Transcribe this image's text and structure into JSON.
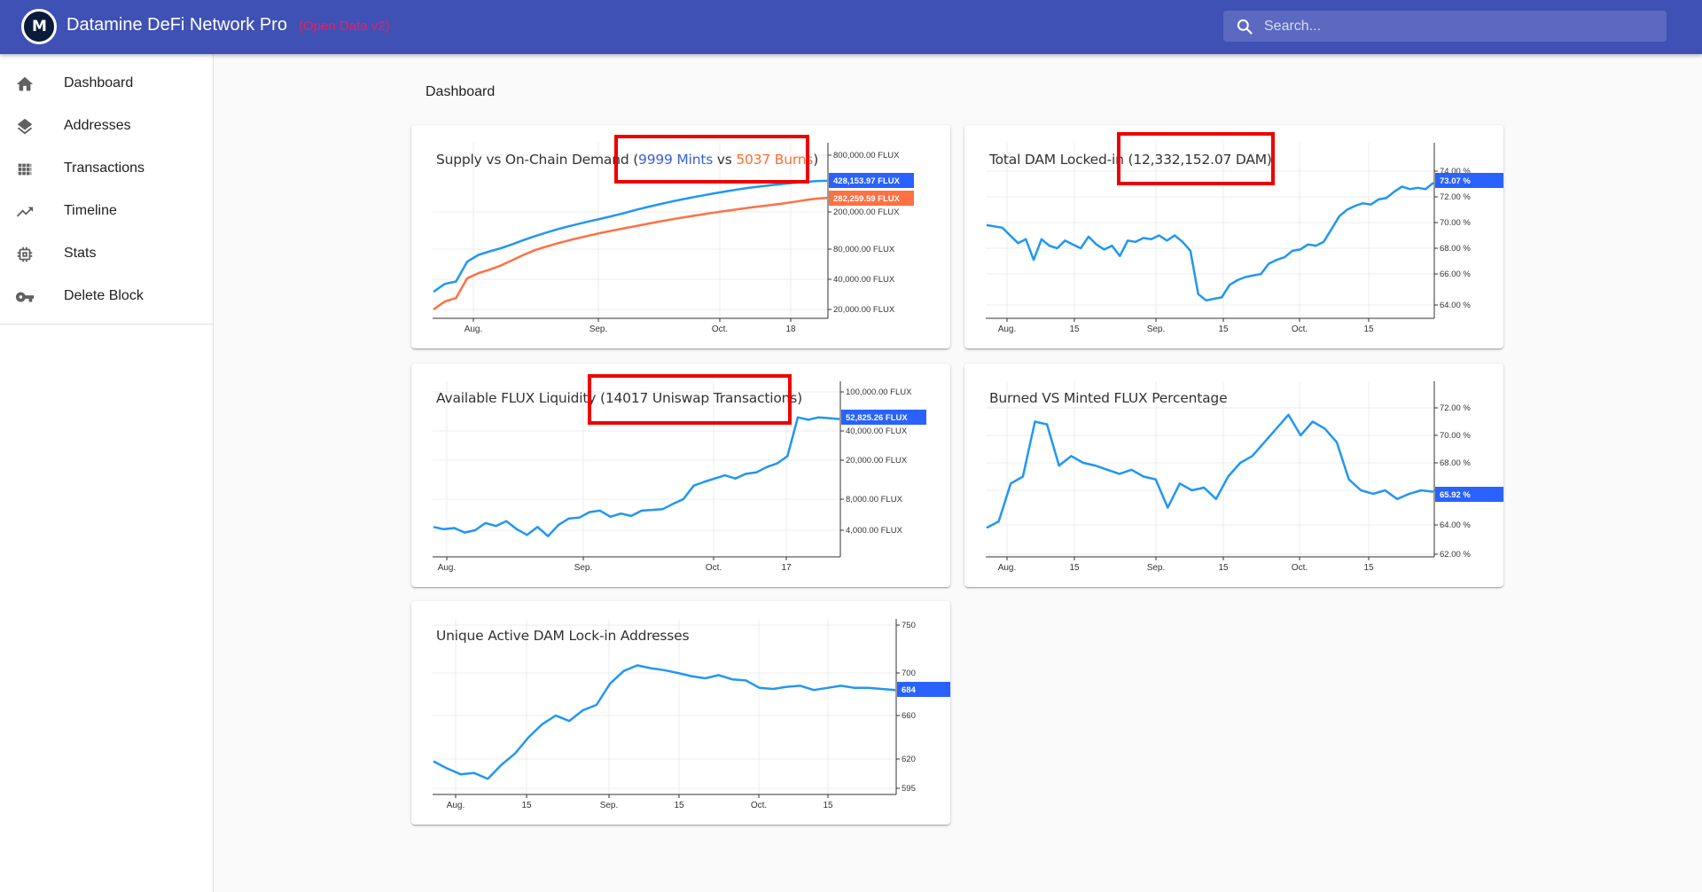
{
  "app": {
    "title": "Datamine DeFi Network Pro",
    "subtitle": "(Open Data v2)",
    "logo_text": "M",
    "search_placeholder": "Search..."
  },
  "sidebar": {
    "items": [
      {
        "label": "Dashboard",
        "icon": "home-icon"
      },
      {
        "label": "Addresses",
        "icon": "layers-icon"
      },
      {
        "label": "Transactions",
        "icon": "grid-icon"
      },
      {
        "label": "Timeline",
        "icon": "trending-up-icon"
      },
      {
        "label": "Stats",
        "icon": "chip-icon"
      },
      {
        "label": "Delete Block",
        "icon": "key-icon"
      }
    ]
  },
  "breadcrumb": "Dashboard",
  "colors": {
    "appbar": "#3f51b5",
    "subtitle": "#e91e63",
    "blue_series": "#2196f3",
    "orange_series": "#ff7043",
    "price_tag": "#2962ff",
    "highlight": "#ef0000"
  },
  "cards": {
    "supply": {
      "title_prefix": "Supply vs On-Chain Demand (",
      "mints": "9999 Mints",
      "vs": " vs ",
      "burns": "5037 Burns",
      "title_suffix": ")"
    },
    "locked": {
      "title": "Total DAM Locked-in (12,332,152.07 DAM)"
    },
    "liquidity": {
      "title_prefix": "Available FLUX Liquidity ",
      "title_hl": "(14017 Uniswap Transactions)"
    },
    "burned": {
      "title": "Burned VS Minted FLUX Percentage"
    },
    "unique": {
      "title": "Unique Active DAM Lock-in Addresses"
    }
  },
  "chart_data": [
    {
      "type": "line",
      "x_ticks": [
        "Aug.",
        "Sep.",
        "Oct.",
        "18"
      ],
      "y_ticks": [
        "800,000.00 FLUX",
        "200,000.00 FLUX",
        "80,000.00 FLUX",
        "40,000.00 FLUX",
        "20,000.00 FLUX"
      ],
      "y_scale": "log",
      "series": [
        {
          "current": "428,153.97 FLUX",
          "color": "#2196f3",
          "values": [
            30000,
            36000,
            38000,
            60000,
            70000,
            76000,
            82000,
            90000,
            100000,
            110000,
            120000,
            130000,
            140000,
            150000,
            160000,
            170000,
            182000,
            195000,
            210000,
            225000,
            240000,
            255000,
            270000,
            285000,
            300000,
            315000,
            330000,
            345000,
            360000,
            372000,
            384000,
            396000,
            406000,
            416000,
            424000,
            428154
          ]
        },
        {
          "current": "282,259.59 FLUX",
          "color": "#ff7043",
          "values": [
            20000,
            24000,
            26000,
            41000,
            46000,
            50000,
            55000,
            62000,
            70000,
            78000,
            85000,
            92000,
            99000,
            106000,
            113000,
            120000,
            127000,
            134000,
            141000,
            149000,
            157000,
            165000,
            173000,
            181000,
            189000,
            197000,
            205000,
            213000,
            221000,
            229000,
            237000,
            245000,
            255000,
            266000,
            276000,
            282260
          ]
        }
      ]
    },
    {
      "type": "line",
      "x_ticks": [
        "Aug.",
        "15",
        "Sep.",
        "15",
        "Oct.",
        "15"
      ],
      "y_ticks": [
        "74.00 %",
        "72.00 %",
        "70.00 %",
        "68.00 %",
        "66.00 %",
        "64.00 %"
      ],
      "series": [
        {
          "current": "73.07 %",
          "color": "#2196f3",
          "values": [
            69.8,
            69.7,
            69.6,
            69.0,
            68.4,
            68.7,
            67.1,
            68.7,
            68.2,
            68.0,
            68.6,
            68.3,
            68.0,
            68.9,
            68.3,
            67.9,
            68.2,
            67.4,
            68.6,
            68.5,
            68.8,
            68.7,
            69.0,
            68.6,
            69.0,
            68.5,
            67.8,
            64.7,
            64.3,
            64.4,
            64.5,
            65.3,
            65.6,
            65.8,
            65.9,
            66.0,
            66.8,
            67.1,
            67.3,
            67.8,
            67.9,
            68.3,
            68.2,
            68.5,
            69.5,
            70.5,
            71.0,
            71.3,
            71.5,
            71.4,
            71.8,
            71.9,
            72.4,
            72.8,
            72.6,
            72.7,
            72.6,
            73.1
          ]
        }
      ]
    },
    {
      "type": "line",
      "x_ticks": [
        "Aug.",
        "Sep.",
        "Oct.",
        "17"
      ],
      "y_ticks": [
        "100,000.00 FLUX",
        "40,000.00 FLUX",
        "20,000.00 FLUX",
        "8,000.00 FLUX",
        "4,000.00 FLUX"
      ],
      "y_scale": "log",
      "series": [
        {
          "current": "52,825.26 FLUX",
          "color": "#2196f3",
          "values": [
            4300,
            4100,
            4200,
            3800,
            4000,
            4700,
            4400,
            4900,
            4100,
            3600,
            4300,
            3500,
            4500,
            5200,
            5300,
            6000,
            6200,
            5400,
            5800,
            5500,
            6200,
            6300,
            6400,
            7200,
            8000,
            11000,
            12000,
            13000,
            14000,
            13000,
            14500,
            15000,
            17000,
            18500,
            22000,
            55000,
            52000,
            55000,
            54000,
            52825
          ]
        }
      ]
    },
    {
      "type": "line",
      "x_ticks": [
        "Aug.",
        "15",
        "Sep.",
        "15",
        "Oct.",
        "15"
      ],
      "y_ticks": [
        "72.00 %",
        "70.00 %",
        "68.00 %",
        "66.00 %",
        "64.00 %",
        "62.00 %"
      ],
      "series": [
        {
          "current": "65.92 %",
          "color": "#2196f3",
          "values": [
            63.8,
            64.2,
            66.5,
            67.0,
            71.0,
            70.8,
            67.8,
            68.5,
            68.0,
            67.8,
            67.5,
            67.2,
            67.5,
            67.0,
            66.8,
            65.0,
            66.5,
            66.0,
            66.2,
            65.5,
            67.0,
            68.0,
            68.5,
            69.5,
            70.5,
            71.5,
            70.0,
            71.0,
            70.5,
            69.5,
            66.8,
            66.0,
            65.8,
            66.0,
            65.5,
            65.8,
            66.0,
            65.92
          ]
        }
      ]
    },
    {
      "type": "line",
      "x_ticks": [
        "Aug.",
        "15",
        "Sep.",
        "15",
        "Oct.",
        "15"
      ],
      "y_ticks": [
        "750",
        "700",
        "660",
        "620",
        "595"
      ],
      "series": [
        {
          "current": "684",
          "color": "#2196f3",
          "values": [
            618,
            612,
            607,
            608,
            603,
            615,
            625,
            640,
            652,
            660,
            655,
            665,
            670,
            690,
            702,
            708,
            705,
            703,
            700,
            697,
            695,
            698,
            694,
            693,
            686,
            685,
            687,
            688,
            684,
            686,
            688,
            686,
            686,
            685,
            684
          ]
        }
      ]
    }
  ]
}
